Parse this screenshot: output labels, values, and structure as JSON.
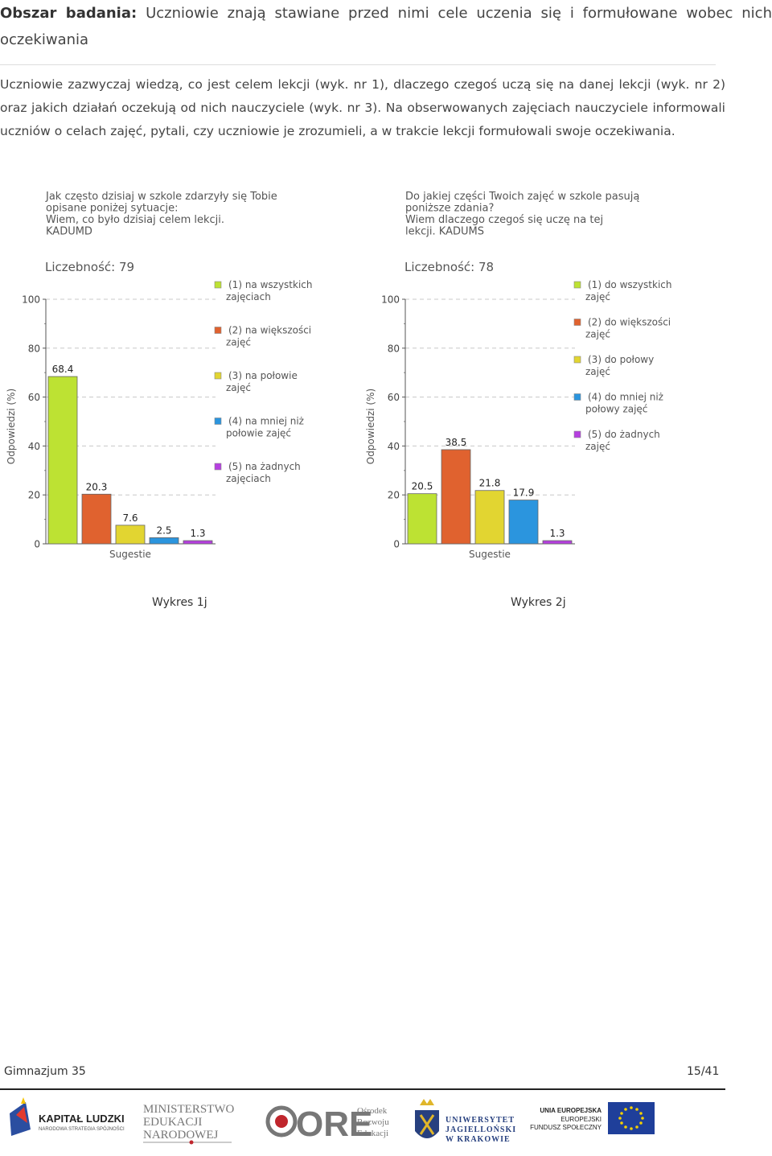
{
  "heading": {
    "label": "Obszar badania:",
    "text": "Uczniowie znają stawiane przed nimi cele uczenia się i formułowane wobec nich oczekiwania"
  },
  "intro": "Uczniowie zazwyczaj wiedzą, co jest celem lekcji (wyk. nr 1), dlaczego czegoś uczą się na danej lekcji (wyk. nr 2) oraz jakich działań oczekują od nich nauczyciele (wyk. nr 3). Na obserwowanych zajęciach nauczyciele informowali uczniów o celach zajęć, pytali, czy uczniowie je zrozumieli, a w trakcie lekcji formułowali swoje oczekiwania.",
  "chart_data": [
    {
      "type": "bar",
      "title_lines": [
        "Jak często dzisiaj w szkole zdarzyły się Tobie",
        "opisane poniżej sytuacje:",
        "Wiem, co było dzisiaj celem lekcji.",
        "KADUMD"
      ],
      "count_label": "Liczebność: 79",
      "xlabel": "Sugestie",
      "ylabel": "Odpowiedzi (%)",
      "ylim": [
        0,
        100
      ],
      "yticks": [
        "0",
        "20",
        "40",
        "60",
        "80",
        "100"
      ],
      "grid": true,
      "legend_position": "right",
      "categories": [
        "(1) na wszystkich zajęciach",
        "(2) na większości zajęć",
        "(3) na połowie zajęć",
        "(4) na mniej niż połowie zajęć",
        "(5) na żadnych zajęciach"
      ],
      "legend_lines": [
        [
          "(1) na wszystkich",
          "zajęciach"
        ],
        [
          "(2) na większości",
          "zajęć"
        ],
        [
          "(3) na połowie",
          "zajęć"
        ],
        [
          "(4) na mniej niż",
          "połowie zajęć"
        ],
        [
          "(5) na żadnych",
          "zajęciach"
        ]
      ],
      "values": [
        68.4,
        20.3,
        7.6,
        2.5,
        1.3
      ],
      "value_labels": [
        "68.4",
        "20.3",
        "7.6",
        "2.5",
        "1.3"
      ],
      "colors": [
        "#bde233",
        "#e0622f",
        "#e2d531",
        "#2b95de",
        "#b63fe0"
      ],
      "caption": "Wykres 1j"
    },
    {
      "type": "bar",
      "title_lines": [
        "Do jakiej części Twoich zajęć w szkole pasują",
        "poniższe zdania?",
        "Wiem dlaczego czegoś się uczę na tej",
        "lekcji. KADUMS"
      ],
      "count_label": "Liczebność: 78",
      "xlabel": "Sugestie",
      "ylabel": "Odpowiedzi (%)",
      "ylim": [
        0,
        100
      ],
      "yticks": [
        "0",
        "20",
        "40",
        "60",
        "80",
        "100"
      ],
      "grid": true,
      "legend_position": "right",
      "categories": [
        "(1) do wszystkich zajęć",
        "(2) do większości zajęć",
        "(3) do połowy zajęć",
        "(4) do mniej niż połowy zajęć",
        "(5) do żadnych zajęć"
      ],
      "legend_lines": [
        [
          "(1) do wszystkich",
          "zajęć"
        ],
        [
          "(2) do większości",
          "zajęć"
        ],
        [
          "(3) do połowy",
          "zajęć"
        ],
        [
          "(4) do mniej niż",
          "połowy zajęć"
        ],
        [
          "(5) do żadnych",
          "zajęć"
        ]
      ],
      "values": [
        20.5,
        38.5,
        21.8,
        17.9,
        1.3
      ],
      "value_labels": [
        "20.5",
        "38.5",
        "21.8",
        "17.9",
        "1.3"
      ],
      "colors": [
        "#bde233",
        "#e0622f",
        "#e2d531",
        "#2b95de",
        "#b63fe0"
      ],
      "caption": "Wykres 2j"
    }
  ],
  "footer": {
    "school": "Gimnazjum 35",
    "page": "15/41"
  },
  "logos": {
    "kapital_ludzki": [
      "KAPITAŁ LUDZKI",
      "NARODOWA STRATEGIA SPÓJNOŚCI"
    ],
    "ministerstwo": [
      "MINISTERSTWO",
      "EDUKACJI",
      "NARODOWEJ"
    ],
    "ore": [
      "ORE",
      "Ośrodek",
      "Rozwoju",
      "Edukacji"
    ],
    "uj": [
      "UNIWERSYTET",
      "JAGIELLOŃSKI",
      "W KRAKOWIE"
    ],
    "ue": [
      "UNIA EUROPEJSKA",
      "EUROPEJSKI",
      "FUNDUSZ SPOŁECZNY"
    ]
  }
}
